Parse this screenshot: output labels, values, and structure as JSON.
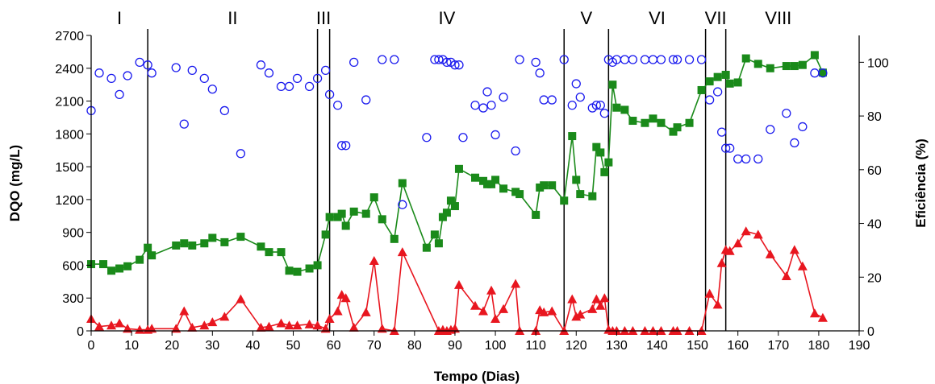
{
  "chart_data": {
    "type": "line",
    "title": "",
    "xlabel": "Tempo (Dias)",
    "ylabel": "DQO (mg/L)",
    "y2label": "Eficiência (%)",
    "xlim": [
      0,
      190
    ],
    "ylim": [
      0,
      2700
    ],
    "y2lim": [
      0,
      110
    ],
    "xticks": [
      "0",
      "10",
      "20",
      "30",
      "40",
      "50",
      "60",
      "70",
      "80",
      "90",
      "100",
      "110",
      "120",
      "130",
      "140",
      "150",
      "160",
      "170",
      "180",
      "190"
    ],
    "yticks": [
      "0",
      "300",
      "600",
      "900",
      "1200",
      "1500",
      "1800",
      "2100",
      "2400",
      "2700"
    ],
    "y2ticks": [
      "0",
      "20",
      "40",
      "60",
      "80",
      "100"
    ],
    "grid": false,
    "legend": "none",
    "phases": [
      {
        "label": "I",
        "start": 0,
        "end": 14
      },
      {
        "label": "II",
        "start": 14,
        "end": 56
      },
      {
        "label": "III",
        "start": 56,
        "end": 59
      },
      {
        "label": "IV",
        "start": 59,
        "end": 117
      },
      {
        "label": "V",
        "start": 117,
        "end": 128
      },
      {
        "label": "VI",
        "start": 128,
        "end": 152
      },
      {
        "label": "VII",
        "start": 152,
        "end": 157
      },
      {
        "label": "VIII",
        "start": 157,
        "end": 183
      }
    ],
    "series": [
      {
        "axis": "left",
        "marker": "square",
        "color": "#1a8a1a",
        "points": [
          [
            0,
            610
          ],
          [
            3,
            610
          ],
          [
            5,
            550
          ],
          [
            7,
            570
          ],
          [
            9,
            590
          ],
          [
            12,
            650
          ],
          [
            14,
            760
          ],
          [
            15,
            690
          ],
          [
            21,
            780
          ],
          [
            23,
            800
          ],
          [
            25,
            780
          ],
          [
            28,
            800
          ],
          [
            30,
            850
          ],
          [
            33,
            810
          ],
          [
            37,
            860
          ],
          [
            42,
            770
          ],
          [
            44,
            720
          ],
          [
            47,
            720
          ],
          [
            49,
            550
          ],
          [
            51,
            540
          ],
          [
            54,
            570
          ],
          [
            56,
            600
          ],
          [
            58,
            880
          ],
          [
            59,
            1040
          ],
          [
            61,
            1040
          ],
          [
            62,
            1070
          ],
          [
            63,
            960
          ],
          [
            65,
            1090
          ],
          [
            68,
            1070
          ],
          [
            70,
            1220
          ],
          [
            72,
            1020
          ],
          [
            75,
            840
          ],
          [
            77,
            1350
          ],
          [
            83,
            760
          ],
          [
            85,
            880
          ],
          [
            86,
            800
          ],
          [
            87,
            1040
          ],
          [
            88,
            1080
          ],
          [
            89,
            1190
          ],
          [
            90,
            1140
          ],
          [
            91,
            1480
          ],
          [
            95,
            1400
          ],
          [
            97,
            1370
          ],
          [
            98,
            1340
          ],
          [
            99,
            1340
          ],
          [
            100,
            1380
          ],
          [
            102,
            1300
          ],
          [
            105,
            1270
          ],
          [
            106,
            1250
          ],
          [
            110,
            1060
          ],
          [
            111,
            1310
          ],
          [
            112,
            1330
          ],
          [
            114,
            1330
          ],
          [
            117,
            1190
          ],
          [
            119,
            1780
          ],
          [
            120,
            1380
          ],
          [
            121,
            1250
          ],
          [
            124,
            1230
          ],
          [
            125,
            1680
          ],
          [
            126,
            1630
          ],
          [
            127,
            1450
          ],
          [
            128,
            1540
          ],
          [
            129,
            2250
          ],
          [
            130,
            2040
          ],
          [
            132,
            2020
          ],
          [
            134,
            1920
          ],
          [
            137,
            1900
          ],
          [
            139,
            1940
          ],
          [
            141,
            1900
          ],
          [
            144,
            1820
          ],
          [
            145,
            1860
          ],
          [
            148,
            1900
          ],
          [
            151,
            2200
          ],
          [
            153,
            2280
          ],
          [
            155,
            2320
          ],
          [
            157,
            2340
          ],
          [
            158,
            2260
          ],
          [
            160,
            2270
          ],
          [
            162,
            2490
          ],
          [
            165,
            2440
          ],
          [
            168,
            2400
          ],
          [
            172,
            2420
          ],
          [
            174,
            2420
          ],
          [
            176,
            2430
          ],
          [
            179,
            2520
          ],
          [
            181,
            2360
          ]
        ]
      },
      {
        "axis": "left",
        "marker": "triangle",
        "color": "#e8161f",
        "points": [
          [
            0,
            110
          ],
          [
            2,
            40
          ],
          [
            5,
            50
          ],
          [
            7,
            70
          ],
          [
            9,
            20
          ],
          [
            12,
            10
          ],
          [
            14,
            10
          ],
          [
            15,
            20
          ],
          [
            21,
            20
          ],
          [
            23,
            180
          ],
          [
            25,
            30
          ],
          [
            28,
            50
          ],
          [
            30,
            80
          ],
          [
            33,
            130
          ],
          [
            37,
            290
          ],
          [
            42,
            30
          ],
          [
            44,
            40
          ],
          [
            47,
            70
          ],
          [
            49,
            50
          ],
          [
            51,
            50
          ],
          [
            54,
            60
          ],
          [
            56,
            50
          ],
          [
            58,
            20
          ],
          [
            59,
            110
          ],
          [
            61,
            180
          ],
          [
            62,
            330
          ],
          [
            63,
            300
          ],
          [
            65,
            30
          ],
          [
            68,
            170
          ],
          [
            70,
            640
          ],
          [
            72,
            20
          ],
          [
            75,
            0
          ],
          [
            77,
            720
          ],
          [
            86,
            0
          ],
          [
            87,
            10
          ],
          [
            88,
            0
          ],
          [
            89,
            10
          ],
          [
            90,
            20
          ],
          [
            91,
            420
          ],
          [
            95,
            230
          ],
          [
            97,
            180
          ],
          [
            99,
            370
          ],
          [
            100,
            110
          ],
          [
            102,
            200
          ],
          [
            105,
            430
          ],
          [
            106,
            0
          ],
          [
            110,
            0
          ],
          [
            111,
            190
          ],
          [
            112,
            170
          ],
          [
            114,
            180
          ],
          [
            117,
            0
          ],
          [
            119,
            290
          ],
          [
            120,
            130
          ],
          [
            121,
            150
          ],
          [
            124,
            200
          ],
          [
            125,
            290
          ],
          [
            126,
            230
          ],
          [
            127,
            300
          ],
          [
            128,
            10
          ],
          [
            129,
            0
          ],
          [
            130,
            0
          ],
          [
            132,
            0
          ],
          [
            134,
            0
          ],
          [
            137,
            0
          ],
          [
            139,
            0
          ],
          [
            141,
            0
          ],
          [
            144,
            0
          ],
          [
            145,
            0
          ],
          [
            148,
            0
          ],
          [
            151,
            0
          ],
          [
            153,
            340
          ],
          [
            155,
            240
          ],
          [
            156,
            620
          ],
          [
            157,
            740
          ],
          [
            158,
            730
          ],
          [
            160,
            800
          ],
          [
            162,
            910
          ],
          [
            165,
            880
          ],
          [
            168,
            700
          ],
          [
            172,
            500
          ],
          [
            174,
            740
          ],
          [
            176,
            590
          ],
          [
            179,
            160
          ],
          [
            181,
            120
          ]
        ]
      },
      {
        "axis": "right",
        "marker": "circle-open",
        "color": "#1a1aee",
        "points": [
          [
            0,
            82
          ],
          [
            2,
            96
          ],
          [
            5,
            94
          ],
          [
            7,
            88
          ],
          [
            9,
            95
          ],
          [
            12,
            100
          ],
          [
            14,
            99
          ],
          [
            15,
            96
          ],
          [
            21,
            98
          ],
          [
            23,
            77
          ],
          [
            25,
            97
          ],
          [
            28,
            94
          ],
          [
            30,
            90
          ],
          [
            33,
            82
          ],
          [
            37,
            66
          ],
          [
            42,
            99
          ],
          [
            44,
            96
          ],
          [
            47,
            91
          ],
          [
            49,
            91
          ],
          [
            51,
            94
          ],
          [
            54,
            91
          ],
          [
            56,
            94
          ],
          [
            58,
            97
          ],
          [
            59,
            88
          ],
          [
            61,
            84
          ],
          [
            62,
            69
          ],
          [
            63,
            69
          ],
          [
            65,
            100
          ],
          [
            68,
            86
          ],
          [
            72,
            101
          ],
          [
            75,
            101
          ],
          [
            77,
            47
          ],
          [
            83,
            72
          ],
          [
            85,
            101
          ],
          [
            86,
            101
          ],
          [
            87,
            101
          ],
          [
            88,
            100
          ],
          [
            89,
            100
          ],
          [
            90,
            99
          ],
          [
            91,
            99
          ],
          [
            92,
            72
          ],
          [
            95,
            84
          ],
          [
            97,
            83
          ],
          [
            98,
            89
          ],
          [
            99,
            84
          ],
          [
            100,
            73
          ],
          [
            102,
            87
          ],
          [
            105,
            67
          ],
          [
            106,
            101
          ],
          [
            110,
            100
          ],
          [
            111,
            96
          ],
          [
            112,
            86
          ],
          [
            114,
            86
          ],
          [
            117,
            101
          ],
          [
            119,
            84
          ],
          [
            120,
            92
          ],
          [
            121,
            87
          ],
          [
            124,
            83
          ],
          [
            125,
            84
          ],
          [
            126,
            84
          ],
          [
            127,
            81
          ],
          [
            128,
            101
          ],
          [
            129,
            100
          ],
          [
            130,
            101
          ],
          [
            132,
            101
          ],
          [
            134,
            101
          ],
          [
            137,
            101
          ],
          [
            139,
            101
          ],
          [
            141,
            101
          ],
          [
            144,
            101
          ],
          [
            145,
            101
          ],
          [
            148,
            101
          ],
          [
            151,
            101
          ],
          [
            153,
            86
          ],
          [
            155,
            89
          ],
          [
            156,
            74
          ],
          [
            157,
            68
          ],
          [
            158,
            68
          ],
          [
            160,
            64
          ],
          [
            162,
            64
          ],
          [
            165,
            64
          ],
          [
            168,
            75
          ],
          [
            172,
            81
          ],
          [
            174,
            70
          ],
          [
            176,
            76
          ],
          [
            179,
            96
          ],
          [
            181,
            96
          ]
        ]
      }
    ]
  }
}
